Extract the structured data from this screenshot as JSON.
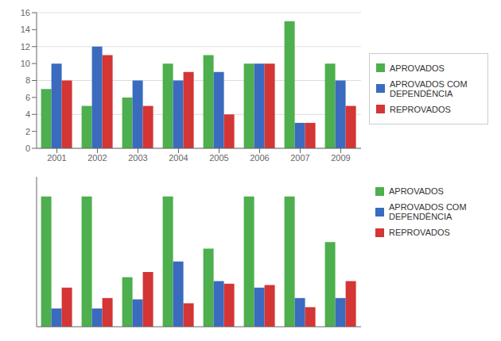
{
  "chart_data": [
    {
      "type": "bar",
      "categories": [
        "2001",
        "2002",
        "2003",
        "2004",
        "2005",
        "2006",
        "2007",
        "2009"
      ],
      "series": [
        {
          "name": "APROVADOS",
          "color": "#4DAF4D",
          "values": [
            7,
            5,
            6,
            10,
            11,
            10,
            15,
            10
          ]
        },
        {
          "name": "APROVADOS COM\nDEPENDÊNCIA",
          "color": "#3A6BBF",
          "values": [
            10,
            12,
            8,
            8,
            9,
            10,
            3,
            8
          ]
        },
        {
          "name": "REPROVADOS",
          "color": "#D43535",
          "values": [
            8,
            11,
            5,
            9,
            4,
            10,
            3,
            5
          ]
        }
      ],
      "ylim": [
        0,
        16
      ],
      "yticks": [
        0,
        2,
        4,
        6,
        8,
        10,
        12,
        14,
        16
      ],
      "grid": true,
      "legend": "right"
    },
    {
      "type": "bar",
      "categories": [
        null,
        null,
        null,
        null,
        null,
        null,
        null,
        null
      ],
      "series": [
        {
          "name": "APROVADOS",
          "color": "#4DAF4D",
          "values": [
            100,
            100,
            38,
            100,
            60,
            100,
            100,
            65
          ]
        },
        {
          "name": "APROVADOS COM\nDEPENDÊNCIA",
          "color": "#3A6BBF",
          "values": [
            14,
            14,
            21,
            50,
            35,
            30,
            22,
            22
          ]
        },
        {
          "name": "REPROVADOS",
          "color": "#D43535",
          "values": [
            30,
            22,
            42,
            18,
            33,
            32,
            15,
            35
          ]
        }
      ],
      "ylim": [
        0,
        115
      ],
      "tick_labels": false,
      "legend": "upper right"
    }
  ]
}
